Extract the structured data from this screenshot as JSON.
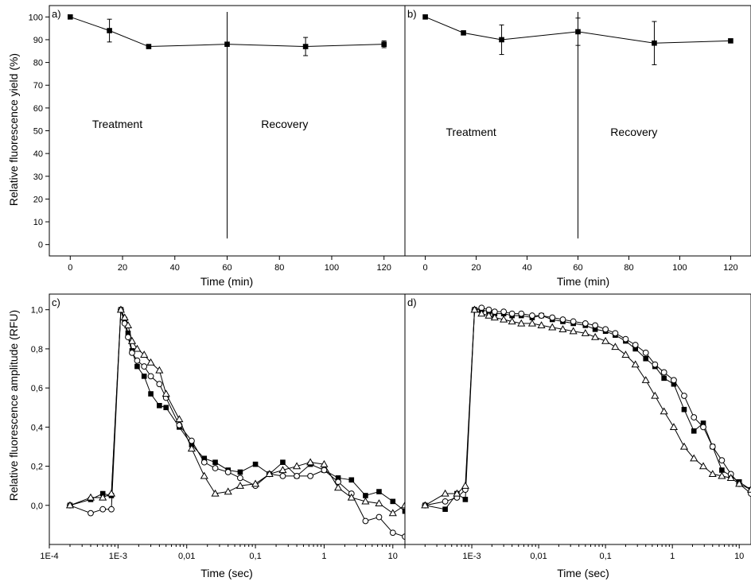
{
  "figure": {
    "ylabel_top": "Relative fluorescence yield (%)",
    "ylabel_bottom": "Relative fluorescence amplitude (RFU)"
  },
  "chart_data": [
    {
      "id": "a",
      "type": "line",
      "panel_label": "a)",
      "xlabel": "Time (min)",
      "ylabel": "Relative fluorescence yield (%)",
      "xlim": [
        -8,
        128
      ],
      "ylim": [
        -5,
        105
      ],
      "xticks": [
        0,
        20,
        40,
        60,
        80,
        100,
        120
      ],
      "yticks": [
        0,
        10,
        20,
        30,
        40,
        50,
        60,
        70,
        80,
        90,
        100
      ],
      "annotations": [
        "Treatment",
        "Recovery"
      ],
      "vline_x": 60,
      "series": [
        {
          "marker": "filled-square",
          "x": [
            0,
            15,
            30,
            60,
            90,
            120
          ],
          "y": [
            100,
            94,
            87,
            88,
            87,
            88
          ],
          "err": [
            0,
            5,
            0,
            0,
            4,
            1.5
          ]
        }
      ]
    },
    {
      "id": "b",
      "type": "line",
      "panel_label": "b)",
      "xlabel": "Time (min)",
      "ylabel": "",
      "xlim": [
        -8,
        128
      ],
      "ylim": [
        -5,
        105
      ],
      "xticks": [
        0,
        20,
        40,
        60,
        80,
        100,
        120
      ],
      "yticks": [],
      "annotations": [
        "Treatment",
        "Recovery"
      ],
      "vline_x": 60,
      "series": [
        {
          "marker": "filled-square",
          "x": [
            0,
            15,
            30,
            60,
            90,
            120
          ],
          "y": [
            100,
            93,
            90,
            93.5,
            88.5,
            89.5
          ],
          "err": [
            0,
            0,
            6.5,
            6,
            9.5,
            0
          ]
        }
      ]
    },
    {
      "id": "c",
      "type": "line",
      "panel_label": "c)",
      "xlabel": "Time (sec)",
      "ylabel": "Relative fluorescence amplitude (RFU)",
      "xscale": "log",
      "xlim": [
        0.0001,
        15
      ],
      "ylim": [
        -0.2,
        1.08
      ],
      "xticks": [
        0.0001,
        0.001,
        0.01,
        0.1,
        1,
        10
      ],
      "xtick_labels": [
        "1E-4",
        "1E-3",
        "0,01",
        "0,1",
        "1",
        "10"
      ],
      "yticks": [
        0,
        0.2,
        0.4,
        0.6,
        0.8,
        1.0
      ],
      "ytick_labels": [
        "0,0",
        "0,2",
        "0,4",
        "0,6",
        "0,8",
        "1,0"
      ],
      "series": [
        {
          "marker": "filled-square",
          "x": [
            0.0002,
            0.0004,
            0.0006,
            0.0008,
            0.0011,
            0.00125,
            0.0014,
            0.0016,
            0.0019,
            0.0024,
            0.003,
            0.004,
            0.005,
            0.0078,
            0.0118,
            0.018,
            0.026,
            0.04,
            0.06,
            0.1,
            0.16,
            0.25,
            0.4,
            0.63,
            1.0,
            1.6,
            2.5,
            4.0,
            6.3,
            10,
            15
          ],
          "y": [
            0,
            0.03,
            0.06,
            0.05,
            1.0,
            0.95,
            0.88,
            0.79,
            0.71,
            0.66,
            0.57,
            0.51,
            0.5,
            0.4,
            0.31,
            0.24,
            0.22,
            0.18,
            0.17,
            0.21,
            0.16,
            0.22,
            0.15,
            0.21,
            0.18,
            0.14,
            0.13,
            0.05,
            0.07,
            0.02,
            -0.03
          ]
        },
        {
          "marker": "open-circle",
          "x": [
            0.0002,
            0.0004,
            0.0006,
            0.0008,
            0.0011,
            0.00125,
            0.0014,
            0.0016,
            0.0019,
            0.0024,
            0.003,
            0.004,
            0.005,
            0.0078,
            0.0118,
            0.018,
            0.026,
            0.04,
            0.06,
            0.1,
            0.16,
            0.25,
            0.4,
            0.63,
            1.0,
            1.6,
            2.5,
            4.0,
            6.3,
            10,
            15
          ],
          "y": [
            0,
            -0.04,
            -0.02,
            -0.02,
            1.0,
            0.93,
            0.86,
            0.78,
            0.74,
            0.71,
            0.66,
            0.62,
            0.55,
            0.41,
            0.33,
            0.22,
            0.19,
            0.17,
            0.14,
            0.1,
            0.16,
            0.15,
            0.15,
            0.15,
            0.18,
            0.12,
            0.06,
            -0.08,
            -0.06,
            -0.14,
            -0.16
          ]
        },
        {
          "marker": "open-triangle",
          "x": [
            0.0002,
            0.0004,
            0.0006,
            0.0008,
            0.0011,
            0.00125,
            0.0014,
            0.0016,
            0.0019,
            0.0024,
            0.003,
            0.004,
            0.005,
            0.0078,
            0.0118,
            0.018,
            0.026,
            0.04,
            0.06,
            0.1,
            0.16,
            0.25,
            0.4,
            0.63,
            1.0,
            1.6,
            2.5,
            4.0,
            6.3,
            10,
            15
          ],
          "y": [
            0,
            0.04,
            0.04,
            0.06,
            1.0,
            0.96,
            0.92,
            0.84,
            0.8,
            0.77,
            0.73,
            0.69,
            0.57,
            0.44,
            0.29,
            0.15,
            0.06,
            0.07,
            0.1,
            0.11,
            0.16,
            0.18,
            0.2,
            0.22,
            0.21,
            0.09,
            0.04,
            0.02,
            0.01,
            -0.04,
            0.0
          ]
        }
      ]
    },
    {
      "id": "d",
      "type": "line",
      "panel_label": "d)",
      "xlabel": "Time (sec)",
      "ylabel": "",
      "xscale": "log",
      "xlim": [
        0.0001,
        15
      ],
      "ylim": [
        -0.2,
        1.08
      ],
      "xticks": [
        0.0001,
        0.001,
        0.01,
        0.1,
        1,
        10
      ],
      "xtick_labels": [
        "",
        "1E-3",
        "0,01",
        "0,1",
        "1",
        "10"
      ],
      "yticks": [],
      "series": [
        {
          "marker": "filled-square",
          "x": [
            0.0002,
            0.0004,
            0.0006,
            0.0008,
            0.0011,
            0.0014,
            0.0018,
            0.0022,
            0.003,
            0.004,
            0.0055,
            0.008,
            0.011,
            0.016,
            0.023,
            0.033,
            0.05,
            0.07,
            0.1,
            0.14,
            0.2,
            0.28,
            0.4,
            0.55,
            0.75,
            1.05,
            1.5,
            2.1,
            2.9,
            4.0,
            5.5,
            7.5,
            10,
            15
          ],
          "y": [
            0.0,
            -0.02,
            0.06,
            0.03,
            1.0,
            1.0,
            0.99,
            0.98,
            0.98,
            0.97,
            0.97,
            0.96,
            0.97,
            0.95,
            0.94,
            0.93,
            0.92,
            0.9,
            0.89,
            0.87,
            0.84,
            0.8,
            0.75,
            0.71,
            0.65,
            0.62,
            0.49,
            0.38,
            0.42,
            0.3,
            0.18,
            0.15,
            0.12,
            0.08
          ]
        },
        {
          "marker": "open-circle",
          "x": [
            0.0002,
            0.0004,
            0.0006,
            0.0008,
            0.0011,
            0.0014,
            0.0018,
            0.0022,
            0.003,
            0.004,
            0.0055,
            0.008,
            0.011,
            0.016,
            0.023,
            0.033,
            0.05,
            0.07,
            0.1,
            0.14,
            0.2,
            0.28,
            0.4,
            0.55,
            0.75,
            1.05,
            1.5,
            2.1,
            2.9,
            4.0,
            5.5,
            7.5,
            10,
            15
          ],
          "y": [
            0.0,
            0.02,
            0.04,
            0.08,
            1.0,
            1.01,
            1.0,
            0.99,
            0.99,
            0.98,
            0.98,
            0.97,
            0.97,
            0.96,
            0.95,
            0.94,
            0.93,
            0.92,
            0.9,
            0.88,
            0.85,
            0.82,
            0.78,
            0.72,
            0.68,
            0.64,
            0.56,
            0.45,
            0.4,
            0.3,
            0.23,
            0.16,
            0.11,
            0.06
          ]
        },
        {
          "marker": "open-triangle",
          "x": [
            0.0002,
            0.0004,
            0.0006,
            0.0008,
            0.0011,
            0.0014,
            0.0018,
            0.0022,
            0.003,
            0.004,
            0.0055,
            0.008,
            0.011,
            0.016,
            0.023,
            0.033,
            0.05,
            0.07,
            0.1,
            0.14,
            0.2,
            0.28,
            0.4,
            0.55,
            0.75,
            1.05,
            1.5,
            2.1,
            2.9,
            4.0,
            5.5,
            7.5,
            10,
            15
          ],
          "y": [
            0.0,
            0.06,
            0.06,
            0.1,
            1.0,
            0.98,
            0.97,
            0.96,
            0.95,
            0.94,
            0.93,
            0.93,
            0.92,
            0.91,
            0.9,
            0.89,
            0.88,
            0.86,
            0.84,
            0.81,
            0.77,
            0.72,
            0.64,
            0.56,
            0.48,
            0.4,
            0.3,
            0.24,
            0.2,
            0.16,
            0.15,
            0.14,
            0.11,
            0.08
          ]
        }
      ]
    }
  ]
}
